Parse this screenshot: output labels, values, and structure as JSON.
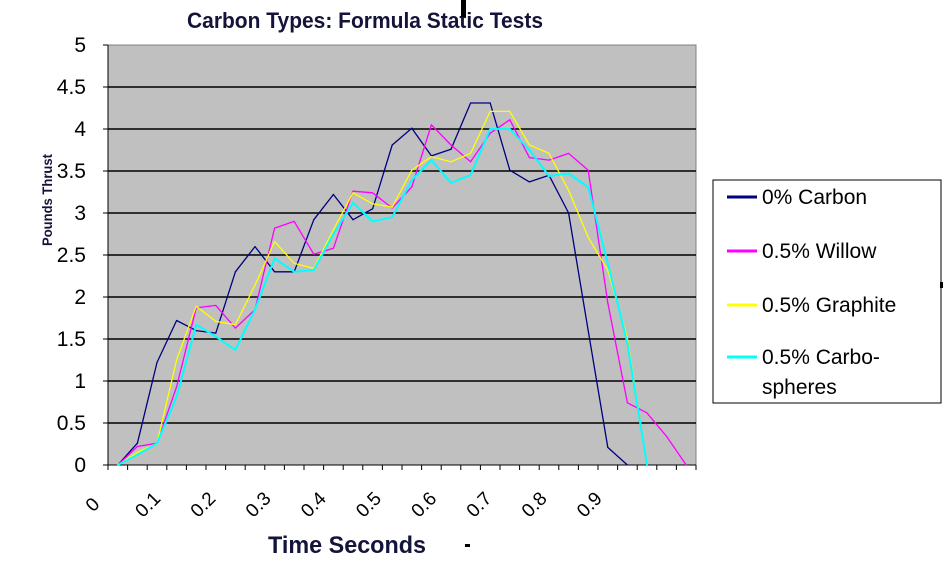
{
  "chart_data": {
    "type": "line",
    "title": "Carbon Types:  Formula  Static Tests",
    "xlabel": "Time Seconds",
    "ylabel": "Pounds Thrust",
    "ylim": [
      0,
      5
    ],
    "yticks": [
      "0",
      "0.5",
      "1",
      "1.5",
      "2",
      "2.5",
      "3",
      "3.5",
      "4",
      "4.5",
      "5"
    ],
    "xtick_labels": [
      "0",
      "0.1",
      "0.2",
      "0.3",
      "0.4",
      "0.5",
      "0.6",
      "0.7",
      "0.8",
      "0.9"
    ],
    "num_categories": 30,
    "grid": true,
    "legend_position": "right",
    "series": [
      {
        "name": "0% Carbon",
        "color": "#000080",
        "values": [
          0,
          0.26,
          1.22,
          1.72,
          1.6,
          1.57,
          2.3,
          2.6,
          2.3,
          2.3,
          2.92,
          3.22,
          2.92,
          3.05,
          3.81,
          4.01,
          3.68,
          3.76,
          4.31,
          4.31,
          3.51,
          3.37,
          3.45,
          3.0,
          1.6,
          0.21,
          0
        ]
      },
      {
        "name": "0.5% Willow",
        "color": "#ff00ff",
        "values": [
          0,
          0.22,
          0.26,
          0.93,
          1.87,
          1.9,
          1.63,
          1.85,
          2.82,
          2.9,
          2.51,
          2.58,
          3.26,
          3.24,
          3.06,
          3.31,
          4.05,
          3.81,
          3.61,
          3.95,
          4.11,
          3.66,
          3.63,
          3.71,
          3.51,
          1.93,
          0.74,
          0.62,
          0.34,
          0
        ]
      },
      {
        "name": "0.5% Graphite",
        "color": "#ffff00",
        "values": [
          0,
          0.15,
          0.26,
          1.25,
          1.89,
          1.71,
          1.67,
          2.14,
          2.66,
          2.4,
          2.34,
          2.8,
          3.24,
          3.11,
          3.07,
          3.51,
          3.67,
          3.61,
          3.71,
          4.21,
          4.21,
          3.81,
          3.71,
          3.27,
          2.71,
          2.32,
          1.51,
          0
        ]
      },
      {
        "name": "0.5% Carbo-spheres",
        "name_lines": [
          "0.5% Carbo-",
          "spheres"
        ],
        "color": "#00ffff",
        "values": [
          0,
          0.12,
          0.26,
          0.81,
          1.67,
          1.53,
          1.37,
          1.85,
          2.46,
          2.3,
          2.32,
          2.75,
          3.12,
          2.9,
          2.95,
          3.39,
          3.63,
          3.36,
          3.45,
          4.0,
          4.0,
          3.75,
          3.44,
          3.47,
          3.31,
          2.4,
          1.45,
          0
        ]
      }
    ]
  }
}
